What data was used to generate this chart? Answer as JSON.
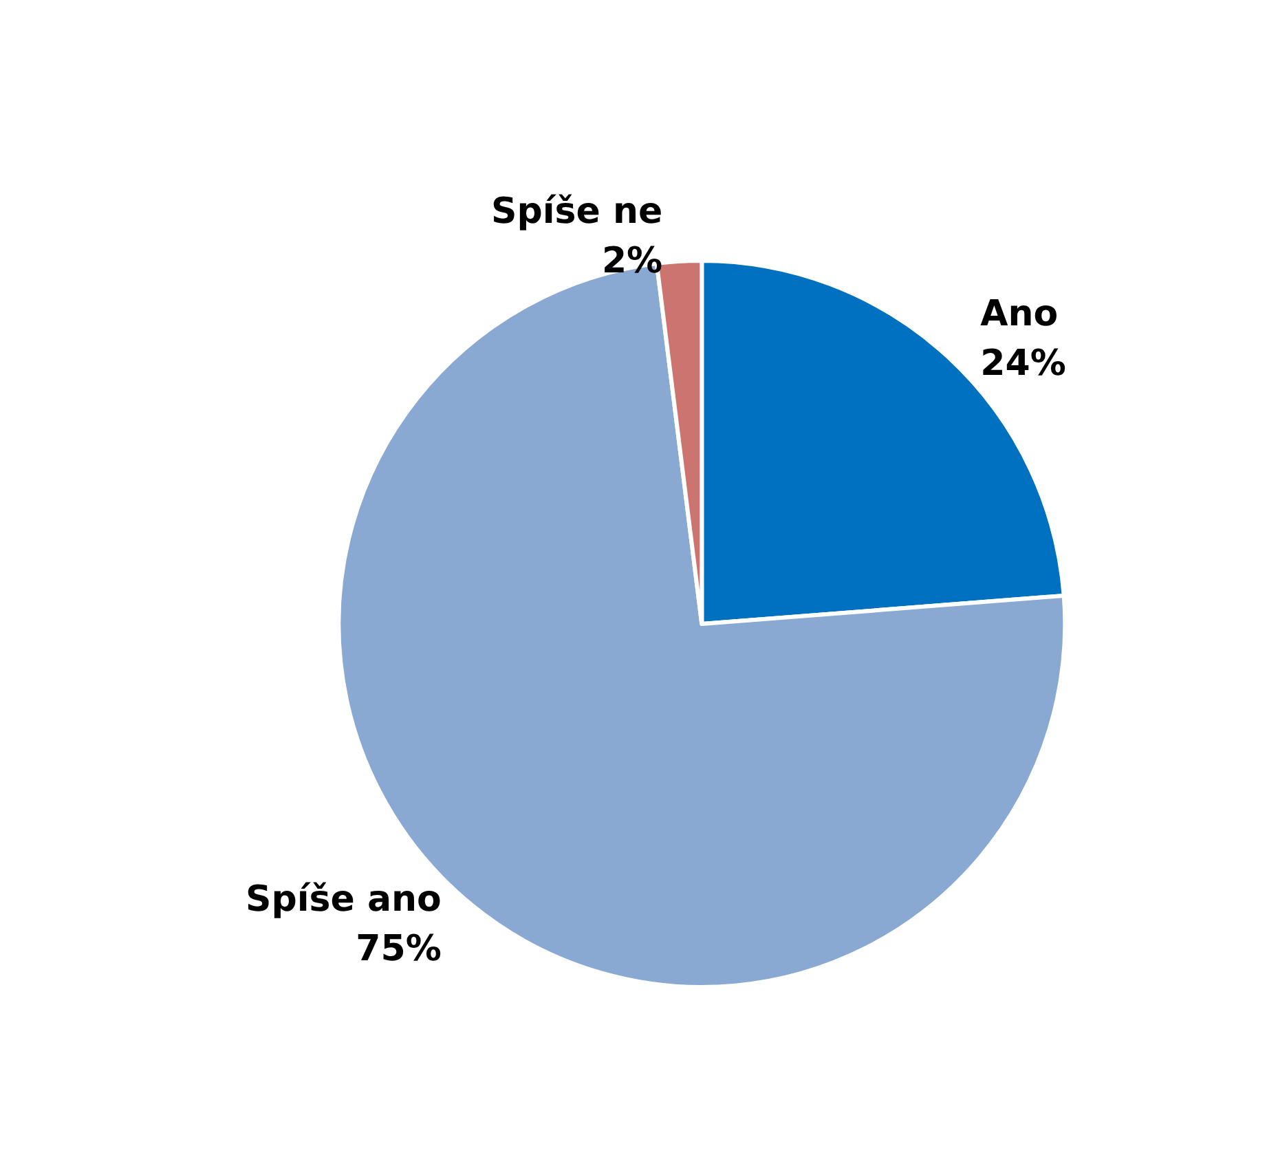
{
  "chart_data": {
    "type": "pie",
    "categories": [
      "Ano",
      "Spíše ano",
      "Spíše ne"
    ],
    "values": [
      24,
      75,
      2
    ],
    "value_labels": [
      "24%",
      "75%",
      "2%"
    ],
    "colors": [
      "#0070c0",
      "#8aa9d2",
      "#cc7470"
    ],
    "legend": false
  }
}
